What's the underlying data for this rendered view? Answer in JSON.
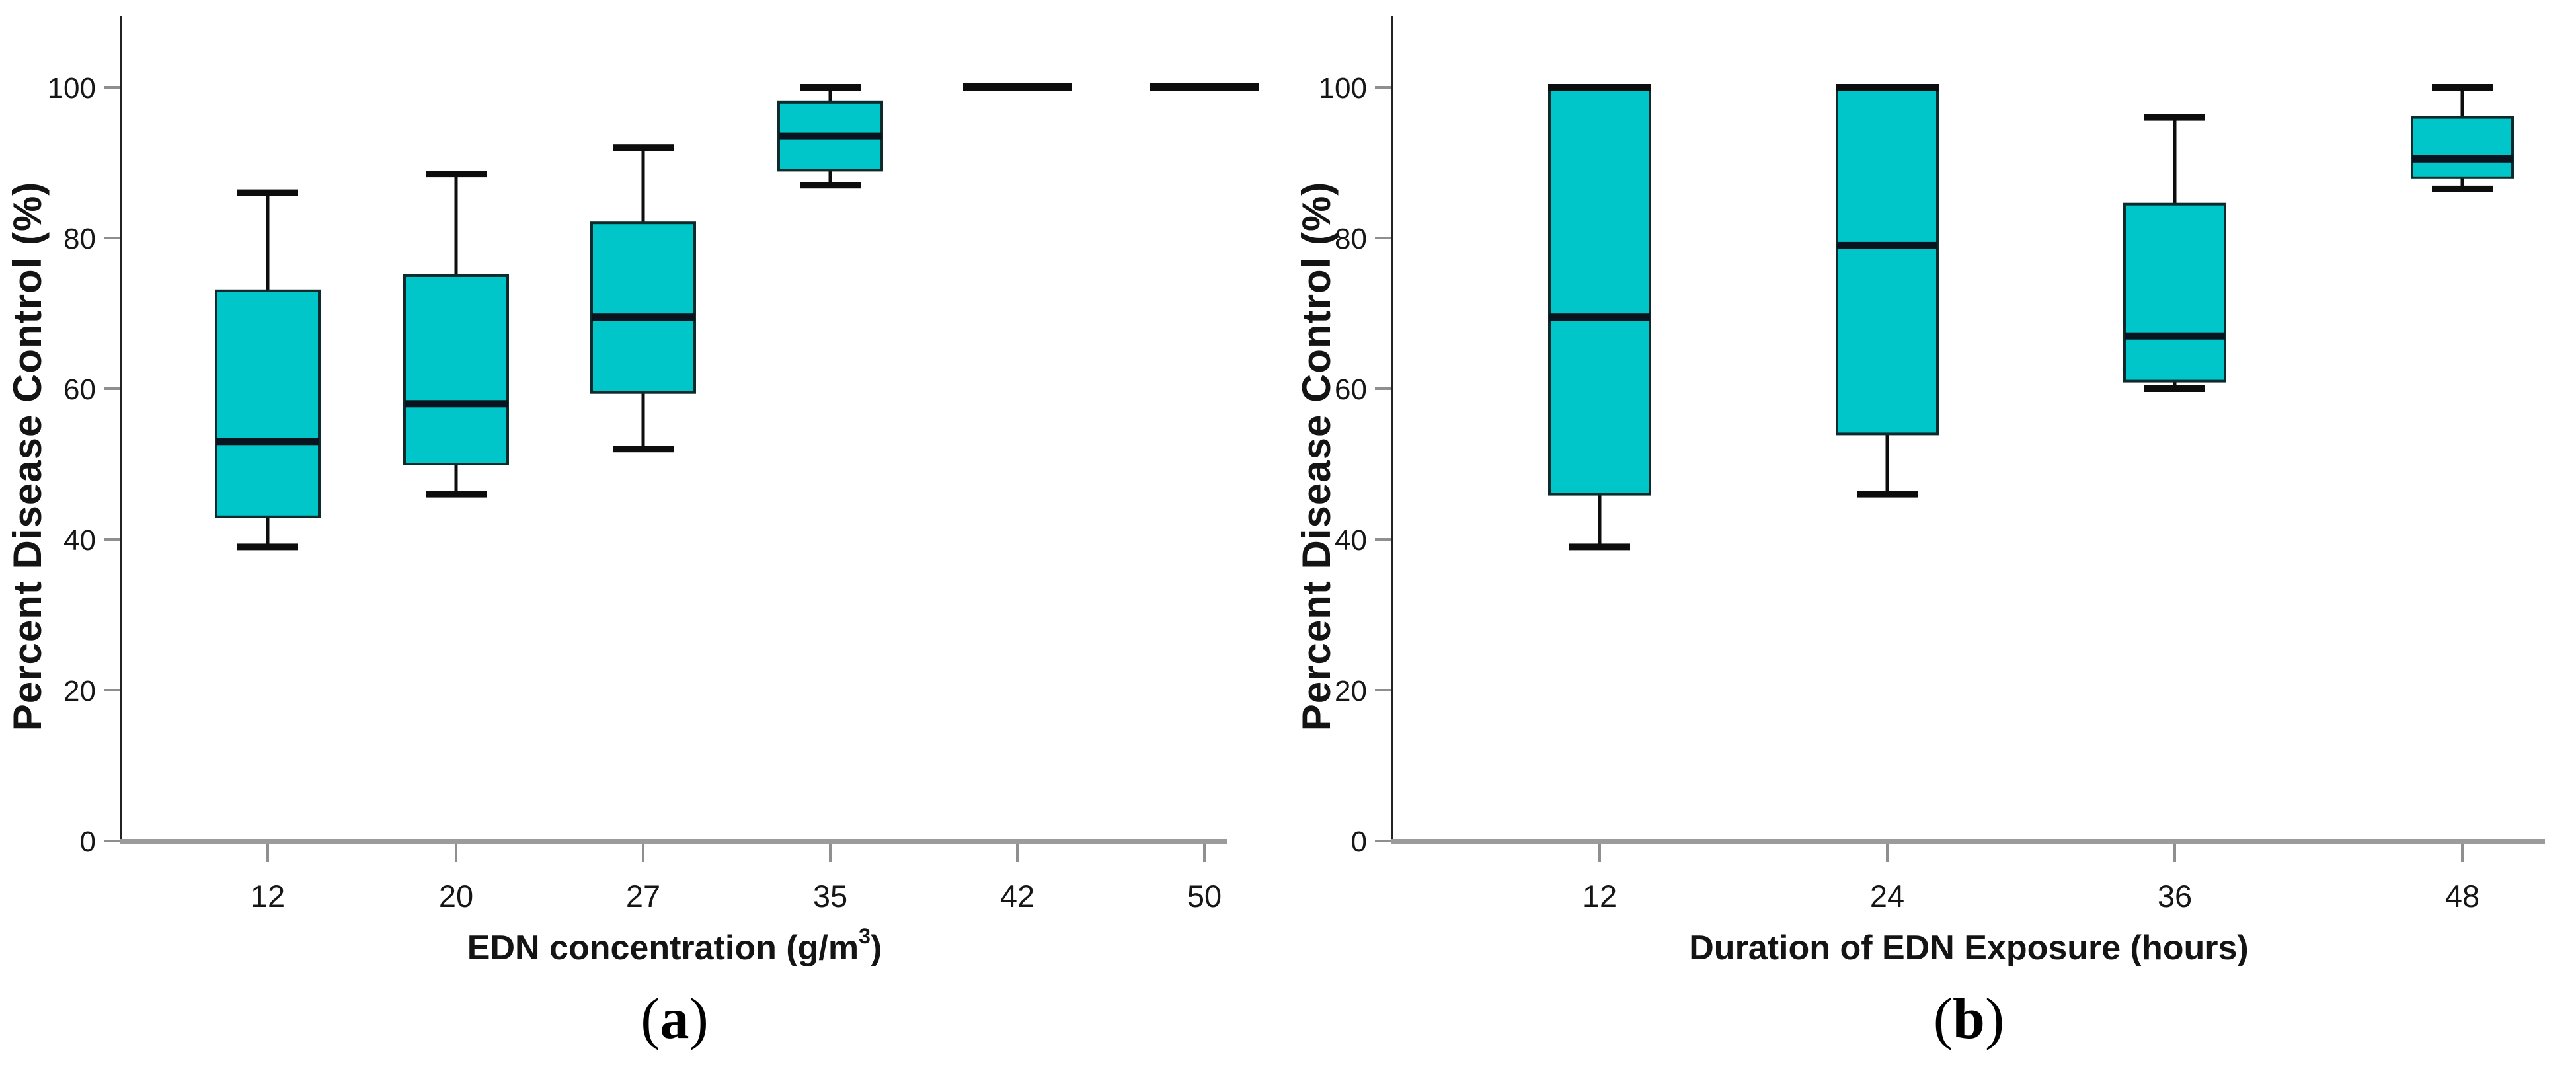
{
  "figure": {
    "palette": {
      "background": "#ffffff",
      "box_fill": "#00c6ca",
      "box_stroke": "#0d2b2d",
      "median": "#0a141f",
      "whisker": "#0d0d0d",
      "flat_line": "#0d0d0d",
      "baseline": "#9b9b9b",
      "tick": "#8f8f8f",
      "axis": "#222222",
      "text": "#161616"
    }
  },
  "panel_a": {
    "ylabel": "Percent Disease Control (%)",
    "xlabel_main": "EDN concentration (g/m",
    "xlabel_sup": "3",
    "xlabel_close": ")",
    "caption_open": "(",
    "caption_letter": "a",
    "caption_close": ")"
  },
  "panel_b": {
    "ylabel": "Percent Disease Control (%)",
    "xlabel_main": "Duration of EDN Exposure (hours)",
    "xlabel_sup": "",
    "xlabel_close": "",
    "caption_open": "(",
    "caption_letter": "b",
    "caption_close": ")"
  },
  "chart_data": [
    {
      "type": "boxplot",
      "panel": "a",
      "title": "",
      "xlabel": "EDN concentration (g/m3)",
      "ylabel": "Percent Disease Control (%)",
      "ylim": [
        0,
        112
      ],
      "yticks": [
        0,
        20,
        40,
        60,
        80,
        100
      ],
      "grid": false,
      "legend": "none",
      "categories": [
        "12",
        "20",
        "27",
        "35",
        "42",
        "50"
      ],
      "boxes": [
        {
          "category": "12",
          "min": 39,
          "q1": 43,
          "median": 53,
          "q3": 73,
          "max": 86
        },
        {
          "category": "20",
          "min": 46,
          "q1": 50,
          "median": 58,
          "q3": 75,
          "max": 88.5
        },
        {
          "category": "27",
          "min": 52,
          "q1": 59.5,
          "median": 69.5,
          "q3": 82,
          "max": 92
        },
        {
          "category": "35",
          "min": 87,
          "q1": 89,
          "median": 93.5,
          "q3": 98,
          "max": 100
        },
        {
          "category": "42",
          "min": 100,
          "q1": 100,
          "median": 100,
          "q3": 100,
          "max": 100
        },
        {
          "category": "50",
          "min": 100,
          "q1": 100,
          "median": 100,
          "q3": 100,
          "max": 100
        }
      ]
    },
    {
      "type": "boxplot",
      "panel": "b",
      "title": "",
      "xlabel": "Duration of EDN Exposure (hours)",
      "ylabel": "Percent Disease Control (%)",
      "ylim": [
        0,
        112
      ],
      "yticks": [
        0,
        20,
        40,
        60,
        80,
        100
      ],
      "grid": false,
      "legend": "none",
      "categories": [
        "12",
        "24",
        "36",
        "48"
      ],
      "boxes": [
        {
          "category": "12",
          "min": 39,
          "q1": 46,
          "median": 69.5,
          "q3": 100,
          "max": 100
        },
        {
          "category": "24",
          "min": 46,
          "q1": 54,
          "median": 79,
          "q3": 100,
          "max": 100
        },
        {
          "category": "36",
          "min": 60,
          "q1": 61,
          "median": 67,
          "q3": 84.5,
          "max": 96
        },
        {
          "category": "48",
          "min": 86.5,
          "q1": 88,
          "median": 90.5,
          "q3": 96,
          "max": 100
        }
      ]
    }
  ]
}
